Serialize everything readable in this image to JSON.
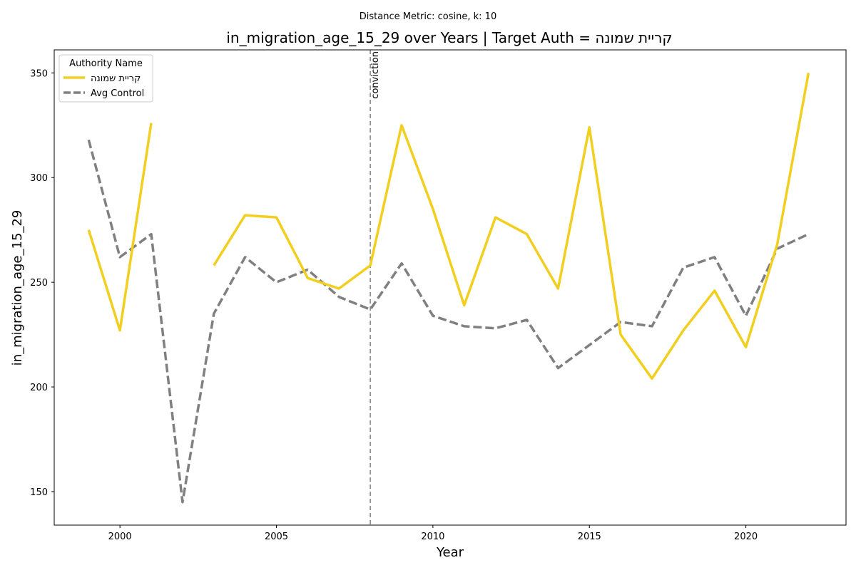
{
  "chart_data": {
    "type": "line",
    "suptitle": "Distance Metric: cosine, k: 10",
    "title": "in_migration_age_15_29 over Years | Target Auth = קריית שמונה",
    "xlabel": "Year",
    "ylabel": "in_migration_age_15_29",
    "xlim": [
      1997.9,
      2023.2
    ],
    "ylim": [
      134,
      361
    ],
    "xticks": [
      2000,
      2005,
      2010,
      2015,
      2020
    ],
    "yticks": [
      150,
      200,
      250,
      300,
      350
    ],
    "grid": false,
    "legend": {
      "title": "Authority Name",
      "placement": "top-left"
    },
    "series": [
      {
        "name": "קריית שמונה",
        "color": "#F2CF1F",
        "style": "solid",
        "points": [
          [
            1999,
            275
          ],
          [
            2000,
            227
          ],
          [
            2001,
            326
          ],
          [
            2002,
            null
          ],
          [
            2003,
            258
          ],
          [
            2004,
            282
          ],
          [
            2005,
            281
          ],
          [
            2006,
            252
          ],
          [
            2007,
            247
          ],
          [
            2008,
            258
          ],
          [
            2009,
            325
          ],
          [
            2010,
            285
          ],
          [
            2011,
            239
          ],
          [
            2012,
            281
          ],
          [
            2013,
            273
          ],
          [
            2014,
            247
          ],
          [
            2015,
            324
          ],
          [
            2016,
            225
          ],
          [
            2017,
            204
          ],
          [
            2018,
            227
          ],
          [
            2019,
            246
          ],
          [
            2020,
            219
          ],
          [
            2021,
            268
          ],
          [
            2022,
            350
          ]
        ]
      },
      {
        "name": "Avg Control",
        "color": "#808080",
        "style": "dashed",
        "points": [
          [
            1999,
            318
          ],
          [
            2000,
            262
          ],
          [
            2001,
            273
          ],
          [
            2002,
            145
          ],
          [
            2003,
            235
          ],
          [
            2004,
            262
          ],
          [
            2005,
            250
          ],
          [
            2006,
            256
          ],
          [
            2007,
            243
          ],
          [
            2008,
            237
          ],
          [
            2009,
            259
          ],
          [
            2010,
            234
          ],
          [
            2011,
            229
          ],
          [
            2012,
            228
          ],
          [
            2013,
            232
          ],
          [
            2014,
            209
          ],
          [
            2015,
            220
          ],
          [
            2016,
            231
          ],
          [
            2017,
            229
          ],
          [
            2018,
            257
          ],
          [
            2019,
            262
          ],
          [
            2020,
            234
          ],
          [
            2021,
            266
          ],
          [
            2022,
            273
          ]
        ]
      }
    ],
    "annotations": [
      {
        "type": "vline",
        "x": 2008,
        "label": "conviction",
        "color": "#808080",
        "style": "dashed"
      }
    ]
  }
}
